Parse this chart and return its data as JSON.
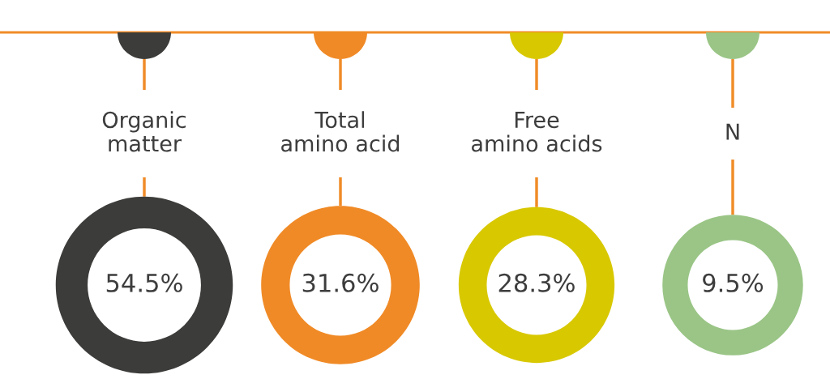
{
  "chart_data": {
    "type": "other",
    "categories": [
      "Organic\nmatter",
      "Total\namino acid",
      "Free\namino acids",
      "N"
    ],
    "values": [
      54.5,
      31.6,
      28.3,
      9.5
    ],
    "value_labels": [
      "54.5%",
      "31.6%",
      "28.3%",
      "9.5%"
    ],
    "colors": [
      "#3c3c3a",
      "#f08a26",
      "#d8c800",
      "#9ac586"
    ]
  }
}
